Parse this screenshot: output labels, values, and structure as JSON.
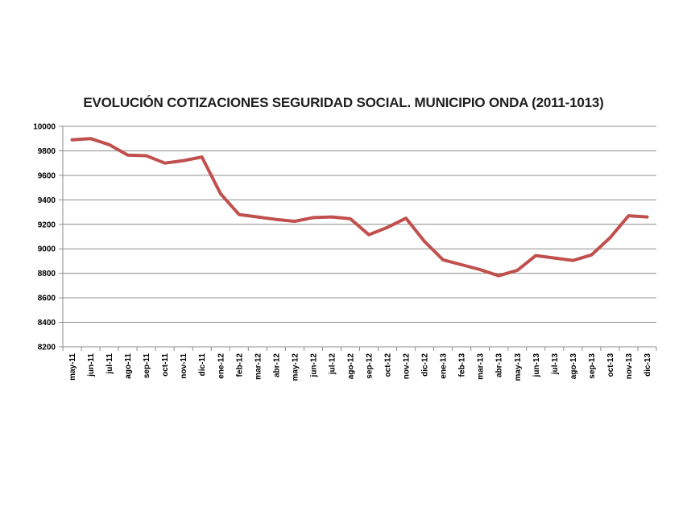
{
  "chart_data": {
    "type": "line",
    "title": "EVOLUCIÓN COTIZACIONES SEGURIDAD SOCIAL. MUNICIPIO ONDA (2011-1013)",
    "xlabel": "",
    "ylabel": "",
    "ylim": [
      8200,
      10000
    ],
    "yticks": [
      "8200",
      "8400",
      "8600",
      "8800",
      "9000",
      "9200",
      "9400",
      "9600",
      "9800",
      "10000"
    ],
    "grid": true,
    "legend": "none",
    "line_color": "#c0504d",
    "grid_color": "#8c8c8c",
    "categories": [
      "may-11",
      "jun-11",
      "jul-11",
      "ago-11",
      "sep-11",
      "oct-11",
      "nov-11",
      "dic-11",
      "ene-12",
      "feb-12",
      "mar-12",
      "abr-12",
      "may-12",
      "jun-12",
      "jul-12",
      "ago-12",
      "sep-12",
      "oct-12",
      "nov-12",
      "dic-12",
      "ene-13",
      "feb-13",
      "mar-13",
      "abr-13",
      "may-13",
      "jun-13",
      "jul-13",
      "ago-13",
      "sep-13",
      "oct-13",
      "nov-13",
      "dic-13"
    ],
    "values": [
      9890,
      9900,
      9850,
      9765,
      9760,
      9700,
      9720,
      9750,
      9450,
      9280,
      9260,
      9240,
      9225,
      9255,
      9260,
      9245,
      9115,
      9175,
      9250,
      9060,
      8910,
      8870,
      8830,
      8780,
      8825,
      8945,
      8925,
      8905,
      8950,
      9090,
      9270,
      9260
    ]
  }
}
